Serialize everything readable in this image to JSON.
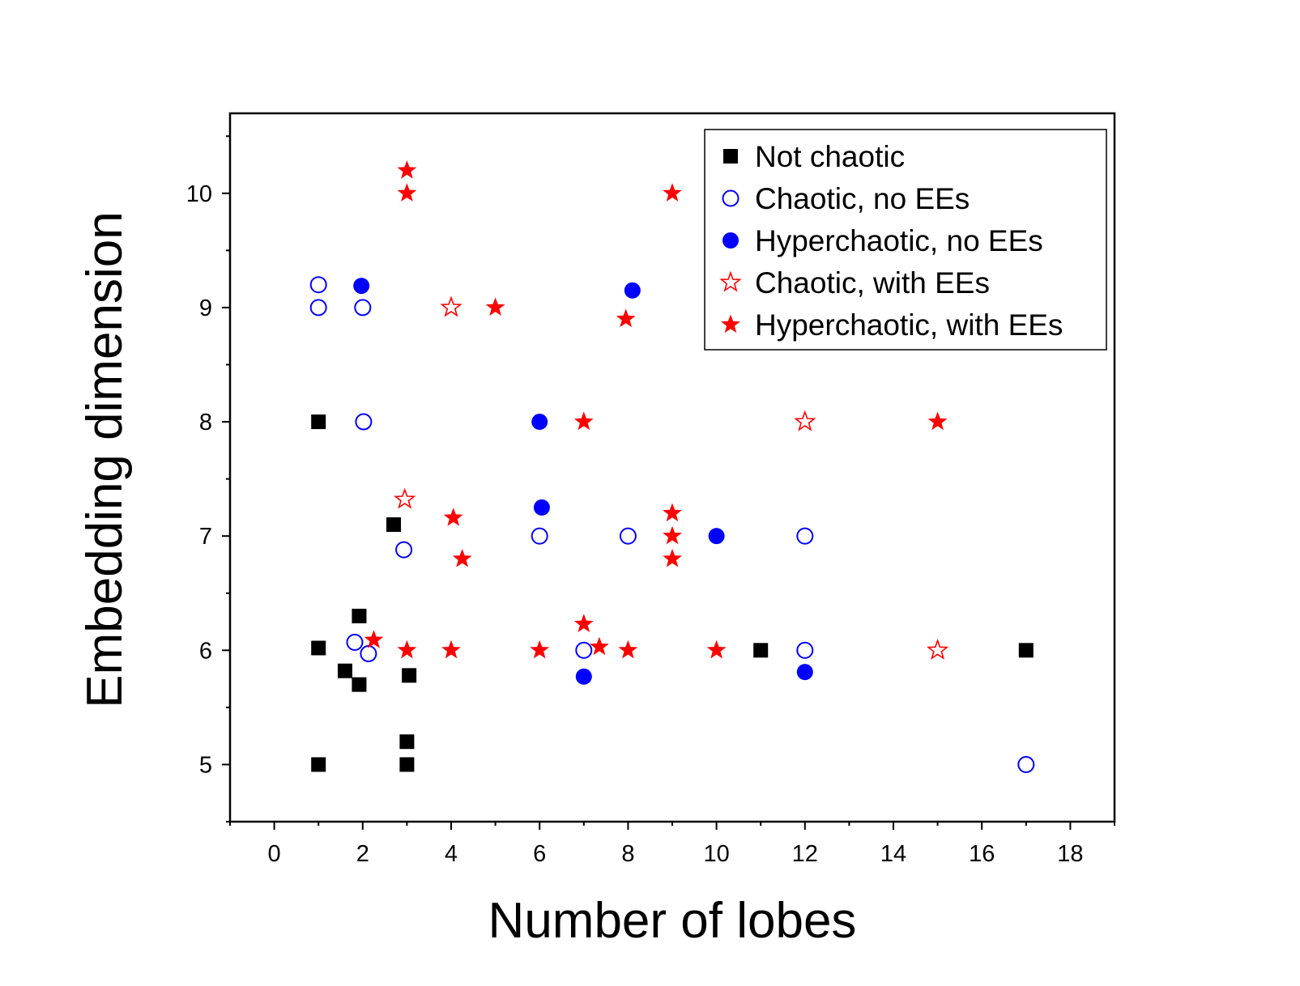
{
  "chart_data": {
    "type": "scatter",
    "title": "",
    "xlabel": "Number of lobes",
    "ylabel": "Embedding dimension",
    "xlim": [
      -1,
      19
    ],
    "ylim": [
      4.5,
      10.7
    ],
    "xticks": [
      0,
      2,
      4,
      6,
      8,
      10,
      12,
      14,
      16,
      18
    ],
    "yticks": [
      5,
      6,
      7,
      8,
      9,
      10
    ],
    "grid": false,
    "legend_position": "top-right",
    "colors": {
      "black": "#000000",
      "blue": "#0000ff",
      "red": "#ff0000"
    },
    "series": [
      {
        "name": "Not chaotic",
        "marker": "square-filled",
        "color": "#000000",
        "points": [
          [
            1,
            8
          ],
          [
            1,
            6.02
          ],
          [
            1,
            5
          ],
          [
            1.6,
            5.82
          ],
          [
            1.92,
            6.3
          ],
          [
            1.92,
            5.7
          ],
          [
            2.7,
            7.1
          ],
          [
            3.0,
            5.2
          ],
          [
            3.0,
            5
          ],
          [
            3.05,
            5.78
          ],
          [
            11,
            6
          ],
          [
            17,
            6
          ]
        ]
      },
      {
        "name": "Chaotic, no EEs",
        "marker": "circle-open",
        "color": "#0000ff",
        "points": [
          [
            1,
            9.2
          ],
          [
            1,
            9
          ],
          [
            2,
            9
          ],
          [
            2.02,
            8
          ],
          [
            1.82,
            6.07
          ],
          [
            2.13,
            5.97
          ],
          [
            2.93,
            6.88
          ],
          [
            6,
            7
          ],
          [
            8,
            7
          ],
          [
            7,
            6
          ],
          [
            12,
            7
          ],
          [
            12,
            6
          ],
          [
            17,
            5
          ]
        ]
      },
      {
        "name": "Hyperchaotic, no EEs",
        "marker": "circle-filled",
        "color": "#0000ff",
        "points": [
          [
            1.97,
            9.19
          ],
          [
            8.1,
            9.15
          ],
          [
            6,
            8
          ],
          [
            6.05,
            7.25
          ],
          [
            10,
            7
          ],
          [
            7,
            5.77
          ],
          [
            12,
            5.81
          ]
        ]
      },
      {
        "name": "Chaotic, with EEs",
        "marker": "star-open",
        "color": "#ff0000",
        "points": [
          [
            4,
            9
          ],
          [
            2.95,
            7.32
          ],
          [
            12,
            8
          ],
          [
            15,
            6
          ]
        ]
      },
      {
        "name": "Hyperchaotic, with EEs",
        "marker": "star-filled",
        "color": "#ff0000",
        "points": [
          [
            3,
            10.2
          ],
          [
            3,
            10
          ],
          [
            9,
            10
          ],
          [
            5,
            9
          ],
          [
            7.95,
            8.9
          ],
          [
            7,
            8
          ],
          [
            15,
            8
          ],
          [
            4.05,
            7.16
          ],
          [
            9,
            7.2
          ],
          [
            9,
            7
          ],
          [
            4.25,
            6.8
          ],
          [
            9,
            6.8
          ],
          [
            7,
            6.23
          ],
          [
            2.25,
            6.09
          ],
          [
            3,
            6
          ],
          [
            4,
            6
          ],
          [
            6,
            6
          ],
          [
            7.35,
            6.03
          ],
          [
            8,
            6
          ],
          [
            10,
            6
          ]
        ]
      }
    ]
  }
}
